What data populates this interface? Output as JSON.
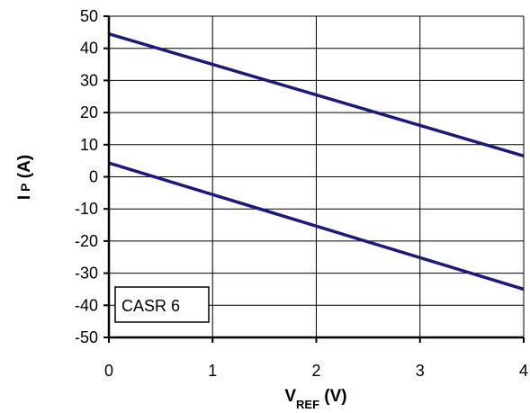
{
  "chart_data": {
    "type": "line",
    "x_label": {
      "main": "V",
      "sub": "REF",
      "unit": " (V)"
    },
    "y_label": {
      "main": "I",
      "sub": "P",
      "unit": " (A)"
    },
    "xlim": [
      0,
      4
    ],
    "ylim": [
      -50,
      50
    ],
    "x_ticks": [
      "0",
      "1",
      "2",
      "3",
      "4"
    ],
    "y_ticks": [
      "50",
      "40",
      "30",
      "20",
      "10",
      "0",
      "-10",
      "-20",
      "-30",
      "-40",
      "-50"
    ],
    "grid": true,
    "series": [
      {
        "x": [
          0,
          4
        ],
        "y": [
          44.5,
          6.5
        ]
      },
      {
        "x": [
          0,
          4
        ],
        "y": [
          4.3,
          -35
        ]
      }
    ],
    "annotations": [
      {
        "text": "CASR 6"
      }
    ],
    "line_color": "#1a1a7a"
  }
}
